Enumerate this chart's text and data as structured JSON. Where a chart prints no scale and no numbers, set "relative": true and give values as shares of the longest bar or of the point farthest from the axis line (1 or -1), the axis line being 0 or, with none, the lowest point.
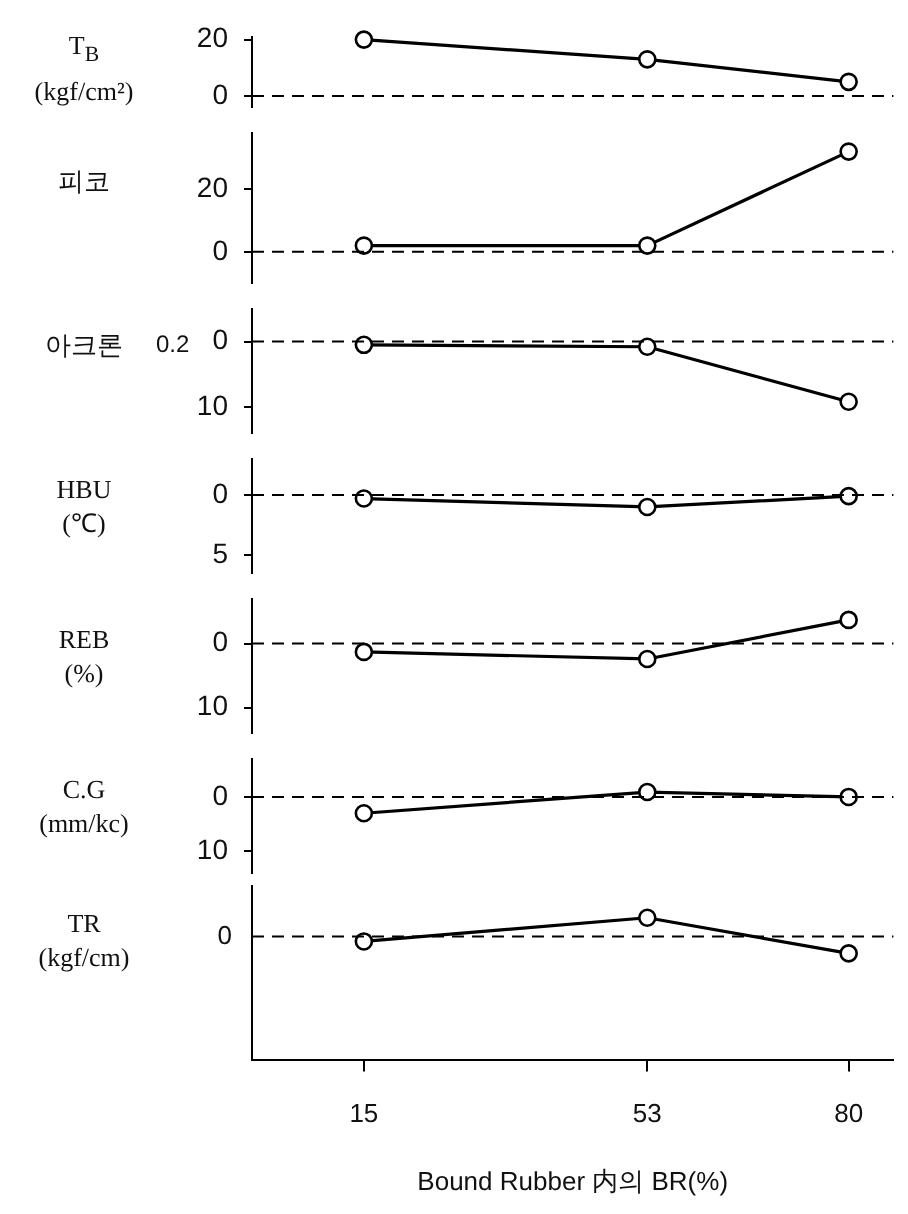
{
  "chart_data": [
    {
      "type": "line",
      "ylabel": "T$_{B}$\n(kgf/cm²)",
      "x": [
        15,
        53,
        80
      ],
      "values": [
        20,
        13,
        5
      ],
      "color": "#000000",
      "marker": "circle",
      "xlim": [
        0,
        86
      ],
      "xticks": [
        15,
        53,
        80
      ],
      "ylim": [
        -4,
        21
      ],
      "yticks": [
        0,
        20
      ],
      "tick_labels": "y",
      "ref_lines": [
        {
          "axis": "y",
          "value": 0,
          "color": "#000000",
          "line_style": "dashed"
        }
      ]
    },
    {
      "type": "line",
      "ylabel": "피코",
      "x": [
        15,
        53,
        80
      ],
      "values": [
        2,
        2,
        32
      ],
      "color": "#000000",
      "marker": "circle",
      "xlim": [
        0,
        86
      ],
      "xticks": [
        15,
        53,
        80
      ],
      "ylim": [
        -10,
        38
      ],
      "yticks": [
        0,
        20
      ],
      "tick_labels": "y",
      "ref_lines": [
        {
          "axis": "y",
          "value": 0,
          "color": "#000000",
          "line_style": "dashed"
        }
      ]
    },
    {
      "type": "line",
      "ylabel": "아크론",
      "annotations": [
        "0.2"
      ],
      "x": [
        15,
        53,
        80
      ],
      "values": [
        0.5,
        0.8,
        9.2
      ],
      "color": "#000000",
      "marker": "circle",
      "xlim": [
        0,
        86
      ],
      "xticks": [
        15,
        53,
        80
      ],
      "ylim": [
        14,
        -5
      ],
      "yticks": [
        0,
        10
      ],
      "tick_labels": "y",
      "ref_lines": [
        {
          "axis": "y",
          "value": 0,
          "color": "#000000",
          "line_style": "dashed"
        }
      ]
    },
    {
      "type": "line",
      "ylabel": "HBU\n(℃)",
      "x": [
        15,
        53,
        80
      ],
      "values": [
        0.3,
        1,
        0.1
      ],
      "color": "#000000",
      "marker": "circle",
      "xlim": [
        0,
        86
      ],
      "xticks": [
        15,
        53,
        80
      ],
      "ylim": [
        6.5,
        -3
      ],
      "yticks": [
        0,
        5
      ],
      "tick_labels": "y",
      "ref_lines": [
        {
          "axis": "y",
          "value": 0,
          "color": "#000000",
          "line_style": "dashed"
        }
      ]
    },
    {
      "type": "line",
      "ylabel": "REB\n(%)",
      "x": [
        15,
        53,
        80
      ],
      "values": [
        1.3,
        2.4,
        -3.7
      ],
      "color": "#000000",
      "marker": "circle",
      "xlim": [
        0,
        86
      ],
      "xticks": [
        15,
        53,
        80
      ],
      "ylim": [
        14,
        -7
      ],
      "yticks": [
        0,
        10
      ],
      "tick_labels": "y",
      "ref_lines": [
        {
          "axis": "y",
          "value": 0,
          "color": "#000000",
          "line_style": "dashed"
        }
      ]
    },
    {
      "type": "line",
      "ylabel": "C.G\n(mm/kc)",
      "x": [
        15,
        53,
        80
      ],
      "values": [
        3,
        -0.9,
        0
      ],
      "color": "#000000",
      "marker": "circle",
      "xlim": [
        0,
        86
      ],
      "xticks": [
        15,
        53,
        80
      ],
      "ylim": [
        14,
        -7
      ],
      "yticks": [
        0,
        10
      ],
      "tick_labels": "y",
      "ref_lines": [
        {
          "axis": "y",
          "value": 0,
          "color": "#000000",
          "line_style": "dashed"
        }
      ]
    },
    {
      "type": "line",
      "ylabel": "TR\n(kgf/cm)",
      "xlabel": "Bound Rubber 内의 BR(%)",
      "x": [
        15,
        53,
        80
      ],
      "values": [
        -0.27,
        1,
        -0.91
      ],
      "color": "#000000",
      "marker": "circle",
      "relative": true,
      "xlim": [
        0,
        86
      ],
      "xticks": [
        15,
        53,
        80
      ],
      "ref_lines": [
        {
          "axis": "y",
          "value": 0,
          "label": "0",
          "color": "#000000",
          "line_style": "dashed"
        }
      ]
    }
  ]
}
